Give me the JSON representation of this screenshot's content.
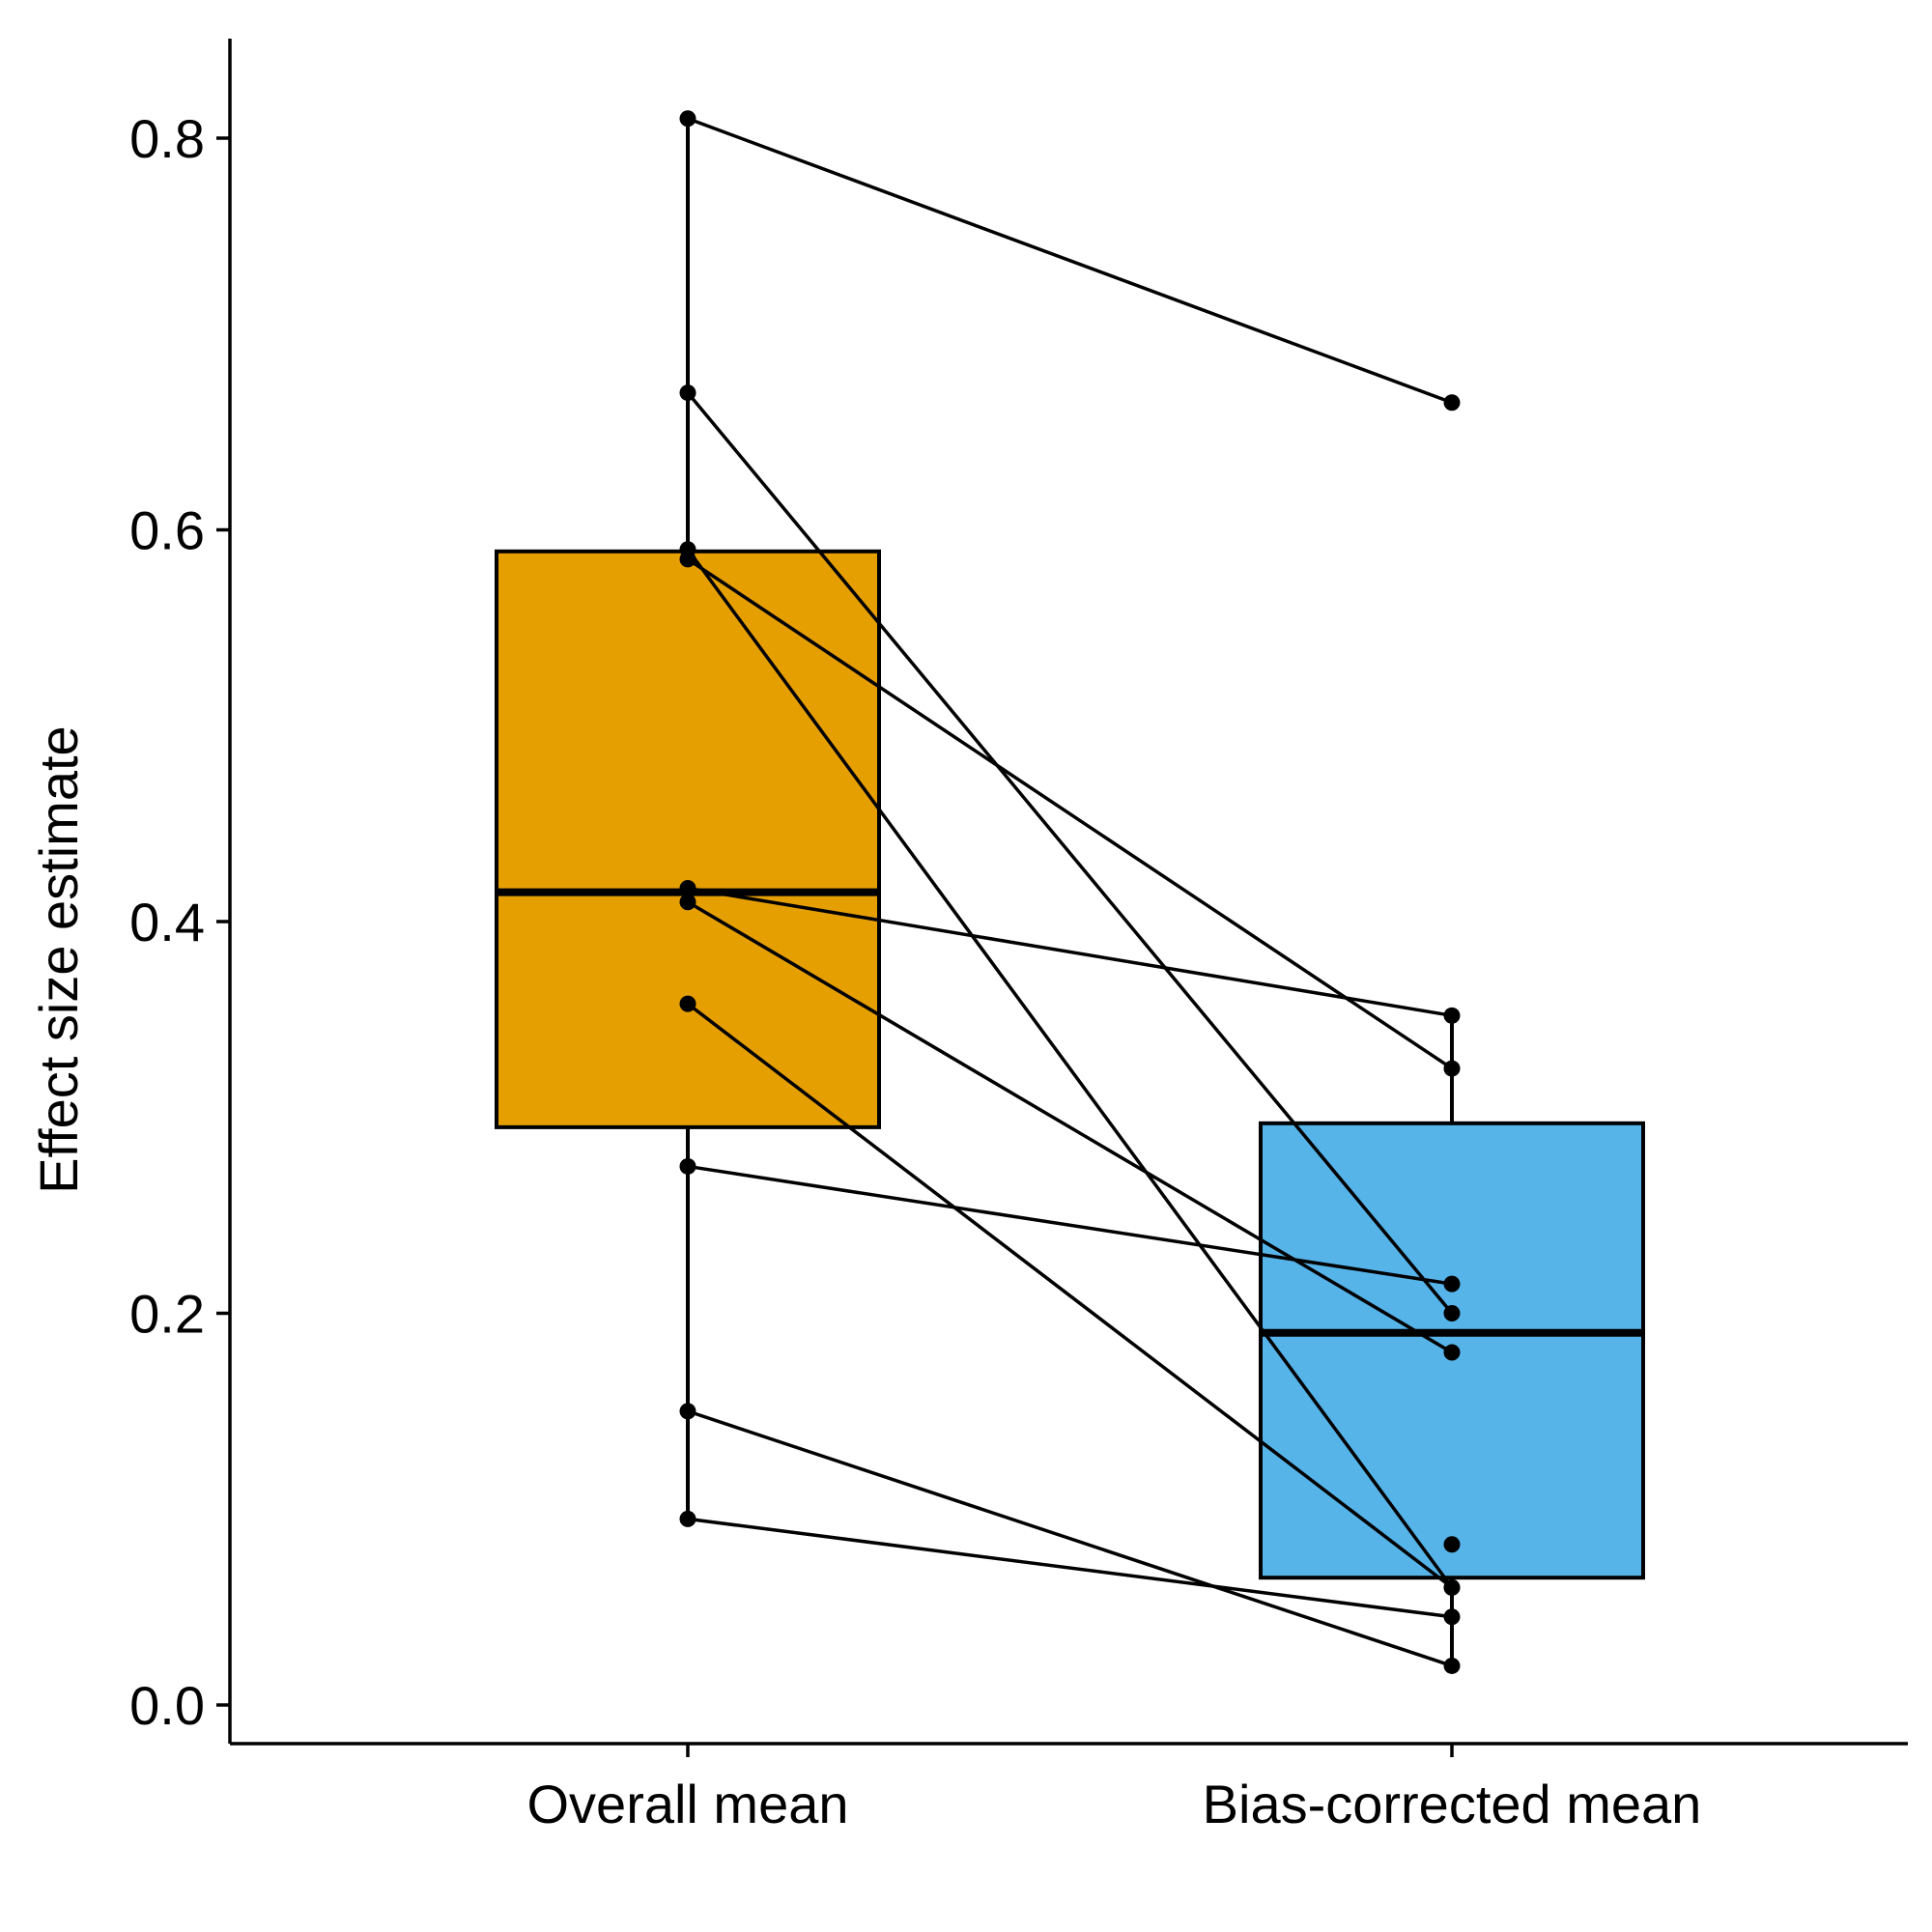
{
  "chart_data": {
    "type": "box",
    "title": "",
    "xlabel": "",
    "ylabel": "Effect size estimate",
    "ylim": [
      -0.02,
      0.85
    ],
    "yticks": [
      0.0,
      0.2,
      0.4,
      0.6,
      0.8
    ],
    "ytick_labels": [
      "0.0",
      "0.2",
      "0.4",
      "0.6",
      "0.8"
    ],
    "categories": [
      "Overall mean",
      "Bias-corrected mean"
    ],
    "colors": {
      "Overall mean": "#E69F00",
      "Bias-corrected mean": "#56B4E9",
      "line": "#000000"
    },
    "boxes": [
      {
        "category": "Overall mean",
        "whisker_low": 0.095,
        "q1": 0.295,
        "median": 0.415,
        "q3": 0.589,
        "whisker_high": 0.81
      },
      {
        "category": "Bias-corrected mean",
        "whisker_low": 0.02,
        "q1": 0.065,
        "median": 0.19,
        "q3": 0.297,
        "whisker_high": 0.352
      }
    ],
    "paired_points": [
      {
        "overall": 0.81,
        "corrected": 0.665
      },
      {
        "overall": 0.67,
        "corrected": 0.2
      },
      {
        "overall": 0.59,
        "corrected": 0.06
      },
      {
        "overall": 0.585,
        "corrected": 0.325
      },
      {
        "overall": 0.417,
        "corrected": 0.352
      },
      {
        "overall": 0.41,
        "corrected": 0.18
      },
      {
        "overall": 0.358,
        "corrected": 0.06
      },
      {
        "overall": 0.275,
        "corrected": 0.215
      },
      {
        "overall": 0.15,
        "corrected": 0.02
      },
      {
        "overall": 0.095,
        "corrected": 0.045
      }
    ],
    "extra_points": [
      {
        "category": "Bias-corrected mean",
        "value": 0.082
      }
    ],
    "grid": false,
    "legend": "none"
  }
}
